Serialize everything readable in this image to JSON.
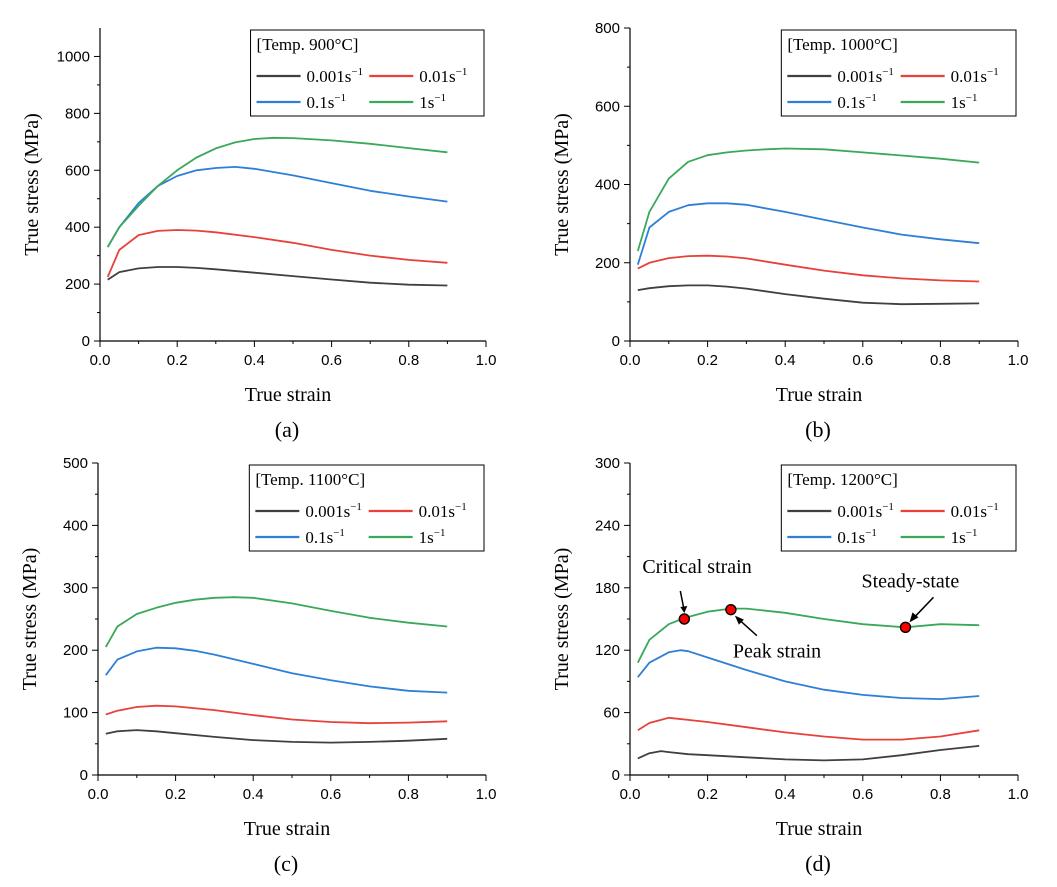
{
  "chart_data": [
    {
      "type": "line",
      "panel_label": "(a)",
      "legend_title": "[Temp. 900°C]",
      "xlabel": "True strain",
      "ylabel": "True stress (MPa)",
      "xlim": [
        0.0,
        1.0
      ],
      "ylim": [
        0,
        1100
      ],
      "xticks": [
        0.0,
        0.2,
        0.4,
        0.6,
        0.8,
        1.0
      ],
      "xtick_labels": [
        "0.0",
        "0.2",
        "0.4",
        "0.6",
        "0.8",
        "1.0"
      ],
      "yticks": [
        0,
        200,
        400,
        600,
        800,
        1000
      ],
      "ytick_labels": [
        "0",
        "200",
        "400",
        "600",
        "800",
        "1000"
      ],
      "grid": false,
      "legend_placement": "top-right",
      "series": [
        {
          "name": "0.001s",
          "exp": "−1",
          "color": "#404040",
          "x": [
            0.02,
            0.05,
            0.1,
            0.15,
            0.2,
            0.25,
            0.3,
            0.4,
            0.5,
            0.6,
            0.7,
            0.8,
            0.9
          ],
          "y": [
            215,
            242,
            255,
            260,
            260,
            257,
            252,
            240,
            228,
            216,
            205,
            198,
            195
          ]
        },
        {
          "name": "0.01s",
          "exp": "−1",
          "color": "#e8413a",
          "x": [
            0.02,
            0.05,
            0.1,
            0.15,
            0.2,
            0.25,
            0.3,
            0.4,
            0.5,
            0.6,
            0.7,
            0.8,
            0.9
          ],
          "y": [
            225,
            320,
            372,
            387,
            390,
            388,
            382,
            365,
            345,
            320,
            300,
            285,
            275
          ]
        },
        {
          "name": "0.1s",
          "exp": "−1",
          "color": "#2f7fd6",
          "x": [
            0.02,
            0.05,
            0.1,
            0.15,
            0.2,
            0.25,
            0.3,
            0.35,
            0.4,
            0.5,
            0.6,
            0.7,
            0.8,
            0.9
          ],
          "y": [
            330,
            400,
            485,
            545,
            580,
            600,
            608,
            612,
            605,
            582,
            555,
            528,
            508,
            490
          ]
        },
        {
          "name": "1s",
          "exp": "−1",
          "color": "#3aa85a",
          "x": [
            0.02,
            0.05,
            0.1,
            0.15,
            0.2,
            0.25,
            0.3,
            0.35,
            0.4,
            0.45,
            0.5,
            0.6,
            0.7,
            0.8,
            0.9
          ],
          "y": [
            330,
            400,
            475,
            545,
            600,
            645,
            677,
            698,
            710,
            714,
            713,
            705,
            693,
            678,
            663
          ]
        }
      ]
    },
    {
      "type": "line",
      "panel_label": "(b)",
      "legend_title": "[Temp. 1000°C]",
      "xlabel": "True strain",
      "ylabel": "True stress (MPa)",
      "xlim": [
        0.0,
        1.0
      ],
      "ylim": [
        0,
        800
      ],
      "xticks": [
        0.0,
        0.2,
        0.4,
        0.6,
        0.8,
        1.0
      ],
      "xtick_labels": [
        "0.0",
        "0.2",
        "0.4",
        "0.6",
        "0.8",
        "1.0"
      ],
      "yticks": [
        0,
        200,
        400,
        600,
        800
      ],
      "ytick_labels": [
        "0",
        "200",
        "400",
        "600",
        "800"
      ],
      "grid": false,
      "legend_placement": "top-right",
      "series": [
        {
          "name": "0.001s",
          "exp": "−1",
          "color": "#404040",
          "x": [
            0.02,
            0.05,
            0.1,
            0.15,
            0.2,
            0.25,
            0.3,
            0.4,
            0.5,
            0.6,
            0.7,
            0.8,
            0.9
          ],
          "y": [
            130,
            135,
            140,
            142,
            142,
            139,
            134,
            120,
            108,
            98,
            94,
            95,
            96
          ]
        },
        {
          "name": "0.01s",
          "exp": "−1",
          "color": "#e8413a",
          "x": [
            0.02,
            0.05,
            0.1,
            0.15,
            0.2,
            0.25,
            0.3,
            0.4,
            0.5,
            0.6,
            0.7,
            0.8,
            0.9
          ],
          "y": [
            185,
            200,
            212,
            217,
            218,
            216,
            211,
            195,
            180,
            168,
            160,
            155,
            152
          ]
        },
        {
          "name": "0.1s",
          "exp": "−1",
          "color": "#2f7fd6",
          "x": [
            0.02,
            0.05,
            0.1,
            0.15,
            0.2,
            0.25,
            0.3,
            0.4,
            0.5,
            0.6,
            0.7,
            0.8,
            0.9
          ],
          "y": [
            195,
            290,
            330,
            347,
            352,
            352,
            348,
            330,
            310,
            290,
            272,
            260,
            250
          ]
        },
        {
          "name": "1s",
          "exp": "−1",
          "color": "#3aa85a",
          "x": [
            0.02,
            0.05,
            0.1,
            0.15,
            0.2,
            0.25,
            0.3,
            0.35,
            0.4,
            0.5,
            0.6,
            0.7,
            0.8,
            0.9
          ],
          "y": [
            230,
            330,
            415,
            458,
            475,
            482,
            487,
            490,
            492,
            490,
            482,
            474,
            466,
            456
          ]
        }
      ]
    },
    {
      "type": "line",
      "panel_label": "(c)",
      "legend_title": "[Temp. 1100°C]",
      "xlabel": "True strain",
      "ylabel": "True stress (MPa)",
      "xlim": [
        0.0,
        1.0
      ],
      "ylim": [
        0,
        500
      ],
      "xticks": [
        0.0,
        0.2,
        0.4,
        0.6,
        0.8,
        1.0
      ],
      "xtick_labels": [
        "0.0",
        "0.2",
        "0.4",
        "0.6",
        "0.8",
        "1.0"
      ],
      "yticks": [
        0,
        100,
        200,
        300,
        400,
        500
      ],
      "ytick_labels": [
        "0",
        "100",
        "200",
        "300",
        "400",
        "500"
      ],
      "grid": false,
      "legend_placement": "top-right",
      "series": [
        {
          "name": "0.001s",
          "exp": "−1",
          "color": "#404040",
          "x": [
            0.02,
            0.05,
            0.1,
            0.15,
            0.2,
            0.3,
            0.4,
            0.5,
            0.6,
            0.7,
            0.8,
            0.9
          ],
          "y": [
            66,
            70,
            72,
            70,
            67,
            61,
            56,
            53,
            52,
            53,
            55,
            58
          ]
        },
        {
          "name": "0.01s",
          "exp": "−1",
          "color": "#e8413a",
          "x": [
            0.02,
            0.05,
            0.1,
            0.15,
            0.2,
            0.3,
            0.4,
            0.5,
            0.6,
            0.7,
            0.8,
            0.9
          ],
          "y": [
            97,
            103,
            109,
            111,
            110,
            104,
            96,
            89,
            85,
            83,
            84,
            86
          ]
        },
        {
          "name": "0.1s",
          "exp": "−1",
          "color": "#2f7fd6",
          "x": [
            0.02,
            0.05,
            0.1,
            0.15,
            0.2,
            0.25,
            0.3,
            0.4,
            0.5,
            0.6,
            0.7,
            0.8,
            0.9
          ],
          "y": [
            160,
            185,
            198,
            204,
            203,
            199,
            193,
            178,
            163,
            152,
            142,
            135,
            132
          ]
        },
        {
          "name": "1s",
          "exp": "−1",
          "color": "#3aa85a",
          "x": [
            0.02,
            0.05,
            0.1,
            0.15,
            0.2,
            0.25,
            0.3,
            0.35,
            0.4,
            0.5,
            0.6,
            0.7,
            0.8,
            0.9
          ],
          "y": [
            205,
            238,
            258,
            268,
            276,
            281,
            284,
            285,
            284,
            275,
            263,
            252,
            244,
            238
          ]
        }
      ]
    },
    {
      "type": "line",
      "panel_label": "(d)",
      "legend_title": "[Temp. 1200°C]",
      "xlabel": "True strain",
      "ylabel": "True stress (MPa)",
      "xlim": [
        0.0,
        1.0
      ],
      "ylim": [
        0,
        300
      ],
      "xticks": [
        0.0,
        0.2,
        0.4,
        0.6,
        0.8,
        1.0
      ],
      "xtick_labels": [
        "0.0",
        "0.2",
        "0.4",
        "0.6",
        "0.8",
        "1.0"
      ],
      "yticks": [
        0,
        60,
        120,
        180,
        240,
        300
      ],
      "ytick_labels": [
        "0",
        "60",
        "120",
        "180",
        "240",
        "300"
      ],
      "grid": false,
      "legend_placement": "top-right",
      "series": [
        {
          "name": "0.001s",
          "exp": "−1",
          "color": "#404040",
          "x": [
            0.02,
            0.05,
            0.08,
            0.1,
            0.15,
            0.2,
            0.3,
            0.4,
            0.5,
            0.6,
            0.7,
            0.8,
            0.9
          ],
          "y": [
            16,
            21,
            23,
            22,
            20,
            19,
            17,
            15,
            14,
            15,
            19,
            24,
            28
          ]
        },
        {
          "name": "0.01s",
          "exp": "−1",
          "color": "#e8413a",
          "x": [
            0.02,
            0.05,
            0.1,
            0.15,
            0.2,
            0.3,
            0.4,
            0.5,
            0.6,
            0.7,
            0.8,
            0.9
          ],
          "y": [
            43,
            50,
            55,
            53,
            51,
            46,
            41,
            37,
            34,
            34,
            37,
            43
          ]
        },
        {
          "name": "0.1s",
          "exp": "−1",
          "color": "#2f7fd6",
          "x": [
            0.02,
            0.05,
            0.1,
            0.13,
            0.15,
            0.2,
            0.3,
            0.4,
            0.5,
            0.6,
            0.7,
            0.8,
            0.9
          ],
          "y": [
            94,
            108,
            118,
            120,
            119,
            113,
            101,
            90,
            82,
            77,
            74,
            73,
            76
          ]
        },
        {
          "name": "1s",
          "exp": "−1",
          "color": "#3aa85a",
          "x": [
            0.02,
            0.05,
            0.1,
            0.14,
            0.2,
            0.26,
            0.3,
            0.4,
            0.5,
            0.6,
            0.71,
            0.8,
            0.9
          ],
          "y": [
            108,
            130,
            145,
            151,
            157,
            160,
            160,
            156,
            150,
            145,
            142,
            145,
            144
          ]
        }
      ],
      "annotations": [
        {
          "text": "Critical strain",
          "x": 0.14,
          "y": 150
        },
        {
          "text": "Peak strain",
          "x": 0.26,
          "y": 159
        },
        {
          "text": "Steady-state",
          "x": 0.71,
          "y": 142
        }
      ]
    }
  ]
}
